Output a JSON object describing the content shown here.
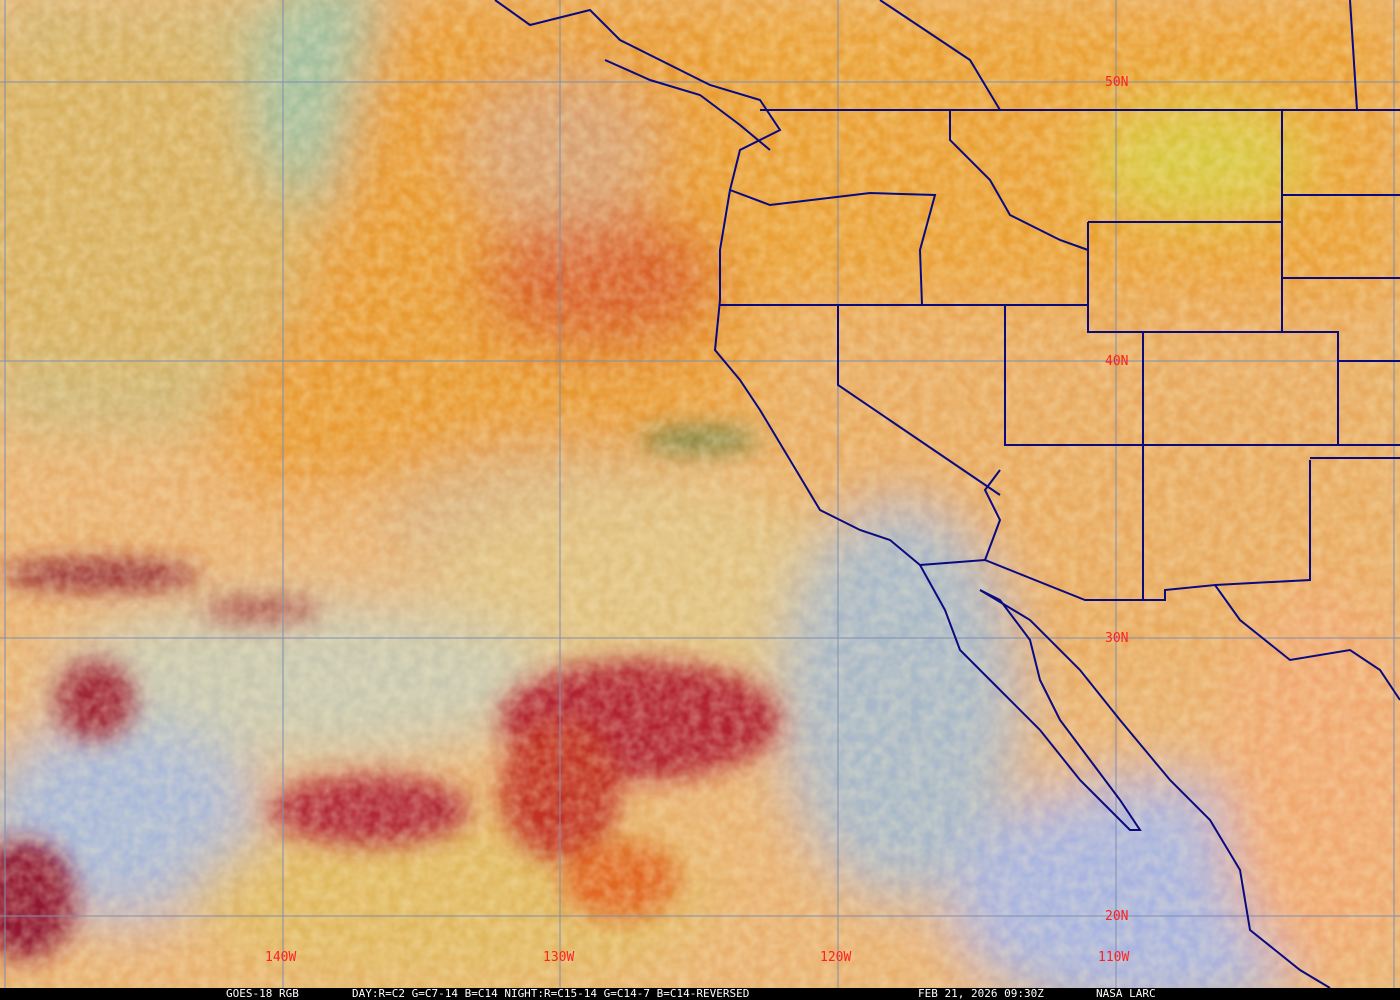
{
  "satellite_product": "GOES-18 RGB",
  "caption": {
    "product": "GOES-18 RGB",
    "recipe": "DAY:R=C2 G=C7-14 B=C14 NIGHT:R=C15-14 G=C14-7 B=C14-REVERSED",
    "timestamp": "FEB 21, 2026 09:30Z",
    "credit": "NASA LARC"
  },
  "grid_labels": {
    "latitudes": [
      "50N",
      "40N",
      "30N",
      "20N"
    ],
    "longitudes": [
      "140W",
      "130W",
      "120W",
      "110W"
    ]
  },
  "colors": {
    "grid": "#7f8fb0",
    "borders": "#0a0a80",
    "labels": "#ff2020",
    "caption_bg": "#000000",
    "caption_text": "#ffffff"
  }
}
